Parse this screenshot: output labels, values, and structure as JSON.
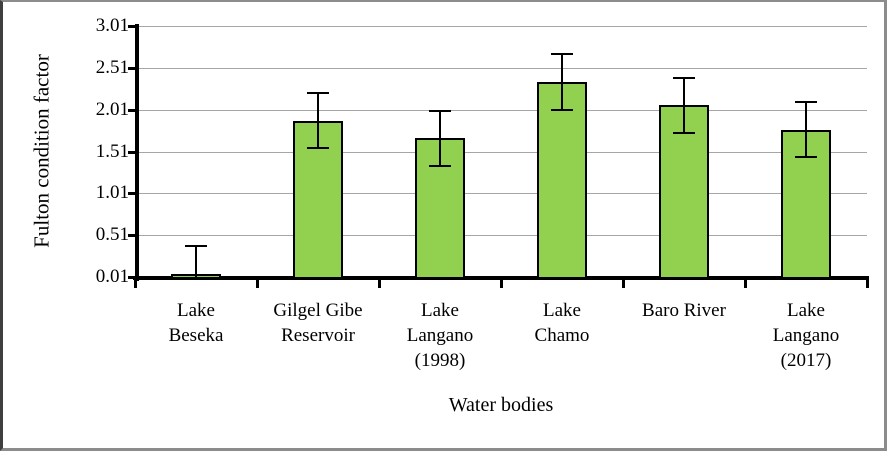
{
  "figure": {
    "background": "#ffffff",
    "border_color": "#8c8c8c"
  },
  "chart_data": {
    "type": "bar",
    "title": "",
    "xlabel": "Water bodies",
    "ylabel": "Fulton condition factor",
    "categories": [
      "Lake Beseka",
      "Gilgel Gibe Reservoir",
      "Lake Langano (1998)",
      "Lake Chamo",
      "Baro River",
      "Lake Langano (2017)"
    ],
    "category_label_lines": [
      [
        "Lake",
        "Beseka"
      ],
      [
        "Gilgel Gibe",
        "Reservoir"
      ],
      [
        "Lake",
        "Langano",
        "(1998)"
      ],
      [
        "Lake",
        "Chamo"
      ],
      [
        "Baro River"
      ],
      [
        "Lake",
        "Langano",
        "(2017)"
      ]
    ],
    "values": [
      0.05,
      1.88,
      1.67,
      2.34,
      2.06,
      1.77
    ],
    "error_bars": [
      0.33,
      0.33,
      0.33,
      0.33,
      0.33,
      0.33
    ],
    "y_ticks": [
      0.01,
      0.51,
      1.01,
      1.51,
      2.01,
      2.51,
      3.01
    ],
    "y_tick_labels": [
      "0.01",
      "0.51",
      "1.01",
      "1.51",
      "2.01",
      "2.51",
      "3.01"
    ],
    "ylim": [
      0.01,
      3.01
    ],
    "grid": true,
    "legend": "none",
    "bar_color": "#92D050",
    "bar_border_color": "#000000",
    "gridline_color": "#a6a6a6",
    "axis_color": "#000000"
  }
}
